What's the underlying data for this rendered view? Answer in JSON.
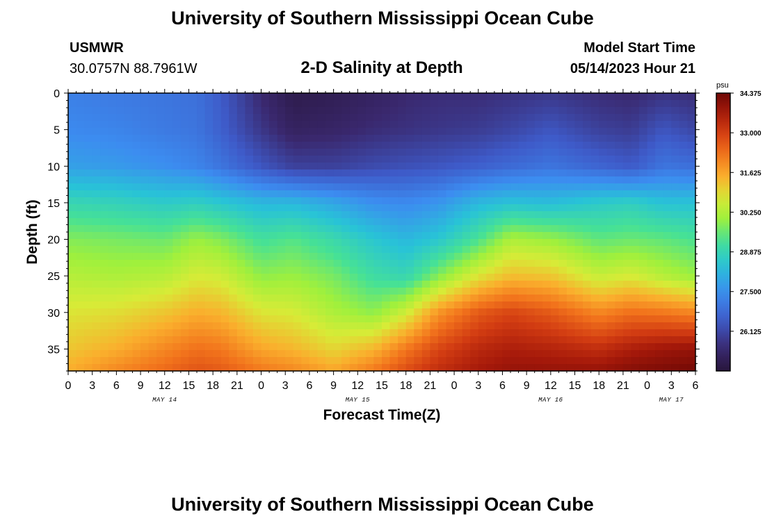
{
  "header": {
    "title": "University of Southern Mississippi Ocean Cube",
    "station": "USMWR",
    "coords": "30.0757N  88.7961W",
    "subtitle": "2-D Salinity at Depth",
    "model_label": "Model Start Time",
    "model_time": "05/14/2023 Hour 21",
    "footer_title": "University of Southern Mississippi Ocean Cube"
  },
  "chart_data": {
    "type": "heatmap",
    "title": "2-D Salinity at Depth",
    "xlabel": "Forecast Time(Z)",
    "ylabel": "Depth (ft)",
    "x_hours_range": [
      0,
      78
    ],
    "y_depth_range": [
      0,
      38
    ],
    "x_tick_hours": [
      0,
      3,
      6,
      9,
      12,
      15,
      18,
      21,
      24,
      27,
      30,
      33,
      36,
      39,
      42,
      45,
      48,
      51,
      54,
      57,
      60,
      63,
      66,
      69,
      72,
      75,
      78
    ],
    "x_tick_labels": [
      "0",
      "3",
      "6",
      "9",
      "12",
      "15",
      "18",
      "21",
      "0",
      "3",
      "6",
      "9",
      "12",
      "15",
      "18",
      "21",
      "0",
      "3",
      "6",
      "9",
      "12",
      "15",
      "18",
      "21",
      "0",
      "3",
      "6"
    ],
    "y_ticks": [
      0,
      5,
      10,
      15,
      20,
      25,
      30,
      35
    ],
    "y_tick_labels": [
      "0",
      "5",
      "10",
      "15",
      "20",
      "25",
      "30",
      "35"
    ],
    "date_labels": [
      {
        "text": "MAY 14",
        "hour": 12
      },
      {
        "text": "MAY 15",
        "hour": 36
      },
      {
        "text": "MAY 16",
        "hour": 60
      },
      {
        "text": "MAY 17",
        "hour": 75
      }
    ],
    "colorbar": {
      "unit": "psu",
      "min": 24.75,
      "max": 34.375,
      "labels": [
        "34.375",
        "33.000",
        "31.625",
        "30.250",
        "28.875",
        "27.500",
        "26.125"
      ],
      "label_values": [
        34.375,
        33.0,
        31.625,
        30.25,
        28.875,
        27.5,
        26.125
      ]
    },
    "profile_depths": [
      0,
      5,
      10,
      15,
      20,
      25,
      30,
      35,
      38
    ],
    "profiles": [
      {
        "hour": 0,
        "salinity": [
          27.2,
          27.4,
          27.8,
          28.9,
          29.8,
          30.3,
          30.8,
          31.2,
          31.5
        ]
      },
      {
        "hour": 6,
        "salinity": [
          27.1,
          27.3,
          27.7,
          28.8,
          29.7,
          30.2,
          30.9,
          31.5,
          32.0
        ]
      },
      {
        "hour": 12,
        "salinity": [
          27.0,
          27.1,
          27.5,
          28.6,
          29.6,
          30.3,
          31.2,
          32.0,
          32.4
        ]
      },
      {
        "hour": 16,
        "salinity": [
          26.9,
          27.0,
          27.3,
          28.7,
          30.0,
          30.7,
          31.5,
          32.3,
          32.7
        ]
      },
      {
        "hour": 19,
        "salinity": [
          26.5,
          26.6,
          27.0,
          28.5,
          29.8,
          30.6,
          31.4,
          32.2,
          32.6
        ]
      },
      {
        "hour": 24,
        "salinity": [
          25.5,
          25.8,
          26.4,
          28.2,
          29.2,
          29.9,
          30.8,
          31.6,
          32.2
        ]
      },
      {
        "hour": 28,
        "salinity": [
          25.0,
          25.3,
          26.0,
          28.2,
          29.4,
          30.0,
          30.7,
          31.4,
          32.0
        ]
      },
      {
        "hour": 33,
        "salinity": [
          25.1,
          25.4,
          26.0,
          27.9,
          29.0,
          29.7,
          30.2,
          31.0,
          31.6
        ]
      },
      {
        "hour": 38,
        "salinity": [
          25.3,
          25.6,
          26.2,
          27.5,
          28.5,
          29.1,
          29.9,
          31.4,
          32.2
        ]
      },
      {
        "hour": 42,
        "salinity": [
          25.5,
          25.7,
          26.3,
          27.4,
          28.2,
          28.9,
          30.6,
          32.2,
          32.8
        ]
      },
      {
        "hour": 46,
        "salinity": [
          25.6,
          25.8,
          26.4,
          27.6,
          28.5,
          29.8,
          31.8,
          32.9,
          33.3
        ]
      },
      {
        "hour": 51,
        "salinity": [
          25.6,
          25.9,
          26.6,
          28.2,
          29.3,
          30.8,
          32.6,
          33.4,
          33.7
        ]
      },
      {
        "hour": 55,
        "salinity": [
          25.7,
          26.1,
          26.8,
          28.4,
          30.2,
          31.3,
          32.9,
          33.6,
          33.9
        ]
      },
      {
        "hour": 60,
        "salinity": [
          25.8,
          26.4,
          27.0,
          28.3,
          30.0,
          31.2,
          32.6,
          33.5,
          33.9
        ]
      },
      {
        "hour": 66,
        "salinity": [
          25.6,
          26.0,
          26.7,
          28.6,
          29.5,
          30.5,
          32.0,
          33.3,
          33.9
        ]
      },
      {
        "hour": 70,
        "salinity": [
          25.5,
          25.9,
          26.5,
          28.7,
          29.6,
          30.7,
          32.3,
          33.6,
          34.1
        ]
      },
      {
        "hour": 74,
        "salinity": [
          25.7,
          26.4,
          27.0,
          28.4,
          29.5,
          30.3,
          32.2,
          33.8,
          34.2
        ]
      },
      {
        "hour": 78,
        "salinity": [
          25.6,
          26.1,
          26.9,
          28.4,
          29.3,
          30.0,
          32.0,
          33.9,
          34.3
        ]
      }
    ]
  }
}
